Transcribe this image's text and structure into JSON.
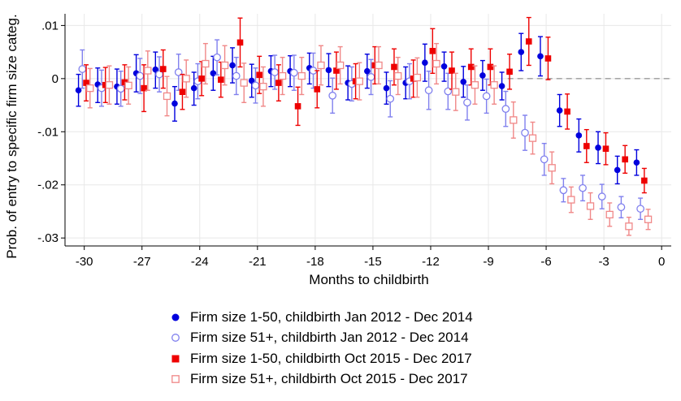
{
  "chart_data": {
    "type": "scatter",
    "xlabel": "Months to childbirth",
    "ylabel": "Prob. of entry to specific firm size categ.",
    "xlim": [
      -31,
      0.5
    ],
    "ylim": [
      -0.0315,
      0.0122
    ],
    "xticks": [
      {
        "value": -30,
        "label": "-30"
      },
      {
        "value": -27,
        "label": "-27"
      },
      {
        "value": -24,
        "label": "-24"
      },
      {
        "value": -21,
        "label": "-21"
      },
      {
        "value": -18,
        "label": "-18"
      },
      {
        "value": -15,
        "label": "-15"
      },
      {
        "value": -12,
        "label": "-12"
      },
      {
        "value": -9,
        "label": "-9"
      },
      {
        "value": -6,
        "label": "-6"
      },
      {
        "value": -3,
        "label": "-3"
      },
      {
        "value": 0,
        "label": "0"
      }
    ],
    "yticks": [
      {
        "value": 0.01,
        "label": ".01"
      },
      {
        "value": 0,
        "label": "0"
      },
      {
        "value": -0.01,
        "label": "-.01"
      },
      {
        "value": -0.02,
        "label": "-.02"
      },
      {
        "value": -0.03,
        "label": "-.03"
      }
    ],
    "reference_line": {
      "y": 0,
      "from_x": -8
    },
    "x": [
      -30,
      -29,
      -28,
      -27,
      -26,
      -25,
      -24,
      -23,
      -22,
      -21,
      -20,
      -19,
      -18,
      -17,
      -16,
      -15,
      -14,
      -13,
      -12,
      -11,
      -10,
      -9,
      -8,
      -7,
      -6,
      -5,
      -4,
      -3,
      -2,
      -1
    ],
    "series": [
      {
        "name": "Firm size 1-50, childbirth Jan 2012 - Dec 2014",
        "color": "#0000dd",
        "marker": "circle-filled",
        "offset": -0.3,
        "values": [
          -0.0022,
          -0.0011,
          -0.0015,
          0.001,
          0.0017,
          -0.0047,
          -0.0018,
          0.001,
          0.0025,
          -0.0004,
          0.0014,
          0.0014,
          0.002,
          0.0016,
          -0.0008,
          0.0014,
          -0.0018,
          -0.0008,
          0.003,
          0.0023,
          -0.0006,
          0.0006,
          -0.0014,
          0.005,
          0.0042,
          -0.006,
          -0.0107,
          -0.013,
          -0.0172,
          -0.0158
        ],
        "lower": [
          -0.0052,
          -0.0045,
          -0.0048,
          -0.0025,
          -0.0018,
          -0.008,
          -0.005,
          -0.0022,
          -0.0008,
          -0.0035,
          -0.0015,
          -0.0015,
          -0.001,
          -0.0015,
          -0.004,
          -0.0018,
          -0.0048,
          -0.0038,
          -0.0005,
          -0.0005,
          -0.0035,
          -0.0022,
          -0.004,
          0.0015,
          0.0005,
          -0.009,
          -0.0138,
          -0.016,
          -0.0198,
          -0.0182
        ],
        "upper": [
          0.0008,
          0.002,
          0.0018,
          0.0045,
          0.005,
          -0.0015,
          0.0012,
          0.0042,
          0.0058,
          0.0027,
          0.0043,
          0.0043,
          0.0048,
          0.0047,
          0.0024,
          0.0046,
          0.0012,
          0.0022,
          0.0065,
          0.005,
          0.0023,
          0.0034,
          0.0012,
          0.0085,
          0.0079,
          -0.003,
          -0.0076,
          -0.01,
          -0.0146,
          -0.0134
        ]
      },
      {
        "name": "Firm size 51+, childbirth Jan 2012 - Dec 2014",
        "color": "#8080ee",
        "marker": "circle-hollow",
        "offset": -0.1,
        "values": [
          0.0018,
          -0.0018,
          -0.0019,
          0.0005,
          0.0008,
          0.0012,
          -0.0005,
          0.004,
          0.0005,
          -0.0013,
          0.0012,
          0.0011,
          0.0015,
          -0.0032,
          -0.001,
          0.0003,
          -0.0038,
          -0.0005,
          -0.0022,
          -0.0024,
          -0.0045,
          -0.0033,
          -0.0057,
          -0.0102,
          -0.0152,
          -0.021,
          -0.0206,
          -0.0222,
          -0.0242,
          -0.0245
        ],
        "lower": [
          -0.0018,
          -0.0052,
          -0.0052,
          -0.0028,
          -0.0025,
          -0.0022,
          -0.0038,
          0.0007,
          -0.003,
          -0.0046,
          -0.002,
          -0.0022,
          -0.0018,
          -0.0065,
          -0.0042,
          -0.003,
          -0.0072,
          -0.0038,
          -0.0058,
          -0.0058,
          -0.0078,
          -0.0065,
          -0.009,
          -0.0135,
          -0.0182,
          -0.0232,
          -0.023,
          -0.0245,
          -0.0262,
          -0.0265
        ],
        "upper": [
          0.0054,
          0.0016,
          0.0014,
          0.0038,
          0.0041,
          0.0046,
          0.0028,
          0.0073,
          0.004,
          0.002,
          0.0044,
          0.0044,
          0.0048,
          0.0001,
          0.0022,
          0.0036,
          -0.0004,
          0.0028,
          0.0014,
          0.001,
          -0.0012,
          -0.0001,
          -0.0024,
          -0.0069,
          -0.0122,
          -0.0188,
          -0.0182,
          -0.0199,
          -0.0222,
          -0.0225
        ]
      },
      {
        "name": "Firm size 1-50, childbirth Oct 2015 - Dec 2017",
        "color": "#ee0000",
        "marker": "square-filled",
        "offset": 0.1,
        "values": [
          -0.0008,
          -0.0012,
          -0.0007,
          -0.0018,
          0.0018,
          -0.0025,
          0.0,
          -0.0002,
          0.0068,
          0.0007,
          -0.0008,
          -0.0052,
          -0.002,
          0.0015,
          -0.0005,
          0.0025,
          0.0022,
          0.0,
          0.0052,
          0.0015,
          0.0022,
          0.0022,
          0.0013,
          0.007,
          0.0038,
          -0.0062,
          -0.0127,
          -0.0132,
          -0.0152,
          -0.0192
        ],
        "lower": [
          -0.0042,
          -0.0045,
          -0.004,
          -0.0062,
          -0.0018,
          -0.0058,
          -0.0032,
          -0.0035,
          0.0022,
          -0.0028,
          -0.0042,
          -0.0088,
          -0.0055,
          -0.002,
          -0.0038,
          -0.001,
          -0.0012,
          -0.0035,
          0.001,
          -0.002,
          -0.0012,
          -0.0012,
          -0.002,
          0.0025,
          -0.0002,
          -0.0095,
          -0.0158,
          -0.0162,
          -0.0178,
          -0.0215
        ],
        "upper": [
          0.0026,
          0.0021,
          0.0026,
          0.0026,
          0.0054,
          0.0008,
          0.0032,
          0.0031,
          0.0114,
          0.0042,
          0.0026,
          -0.0016,
          0.0015,
          0.005,
          0.0028,
          0.006,
          0.0056,
          0.0035,
          0.0094,
          0.005,
          0.0056,
          0.0056,
          0.0046,
          0.0115,
          0.0078,
          -0.0029,
          -0.0096,
          -0.0102,
          -0.0126,
          -0.0169
        ]
      },
      {
        "name": "Firm size 51+, childbirth Oct 2015 - Dec 2017",
        "color": "#f08888",
        "marker": "square-hollow",
        "offset": 0.3,
        "values": [
          -0.0018,
          -0.0012,
          -0.0013,
          0.0015,
          -0.0033,
          0.0,
          0.0028,
          0.0025,
          -0.0008,
          -0.0015,
          0.0005,
          0.0005,
          0.0025,
          0.0025,
          -0.0005,
          0.0025,
          0.0005,
          0.0002,
          0.0028,
          -0.0025,
          -0.0012,
          -0.0012,
          -0.0078,
          -0.0112,
          -0.0168,
          -0.0228,
          -0.024,
          -0.0256,
          -0.0278,
          -0.0265
        ],
        "lower": [
          -0.0055,
          -0.0048,
          -0.0048,
          -0.0022,
          -0.007,
          -0.0035,
          -0.001,
          -0.0012,
          -0.0045,
          -0.0052,
          -0.003,
          -0.003,
          -0.0012,
          -0.001,
          -0.004,
          -0.001,
          -0.003,
          -0.0035,
          -0.001,
          -0.006,
          -0.0048,
          -0.0048,
          -0.0112,
          -0.0142,
          -0.0198,
          -0.0252,
          -0.0265,
          -0.0278,
          -0.0295,
          -0.0284
        ],
        "upper": [
          0.0019,
          0.0024,
          0.0022,
          0.0052,
          0.0004,
          0.0035,
          0.0066,
          0.0062,
          0.0029,
          0.0022,
          0.004,
          0.004,
          0.0062,
          0.006,
          0.003,
          0.006,
          0.004,
          0.0039,
          0.0066,
          0.001,
          0.0024,
          0.0024,
          -0.0044,
          -0.0082,
          -0.0138,
          -0.0204,
          -0.0215,
          -0.0234,
          -0.0261,
          -0.0246
        ]
      }
    ]
  }
}
